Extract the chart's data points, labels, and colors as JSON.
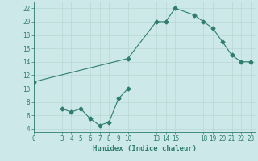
{
  "line1_x": [
    0,
    10,
    13,
    14,
    15,
    17,
    18,
    19,
    20,
    21,
    22,
    23
  ],
  "line1_y": [
    11,
    14.5,
    20,
    20,
    22,
    21,
    20,
    19,
    17,
    15,
    14,
    14
  ],
  "line2_x": [
    3,
    4,
    5,
    6,
    7,
    8,
    9,
    10
  ],
  "line2_y": [
    7,
    6.5,
    7,
    5.5,
    4.5,
    5,
    8.5,
    10
  ],
  "color": "#2e7d6e",
  "bg_color": "#cce8e8",
  "grid_color": "#b8d8d4",
  "xlabel": "Humidex (Indice chaleur)",
  "xlim": [
    0,
    23.5
  ],
  "ylim": [
    3.5,
    23
  ],
  "xticks": [
    0,
    3,
    4,
    5,
    6,
    7,
    8,
    9,
    10,
    13,
    14,
    15,
    18,
    19,
    20,
    21,
    22,
    23
  ],
  "yticks": [
    4,
    6,
    8,
    10,
    12,
    14,
    16,
    18,
    20,
    22
  ],
  "tick_fontsize": 5.5,
  "xlabel_fontsize": 6.5,
  "linewidth": 0.8,
  "markersize": 2.5
}
